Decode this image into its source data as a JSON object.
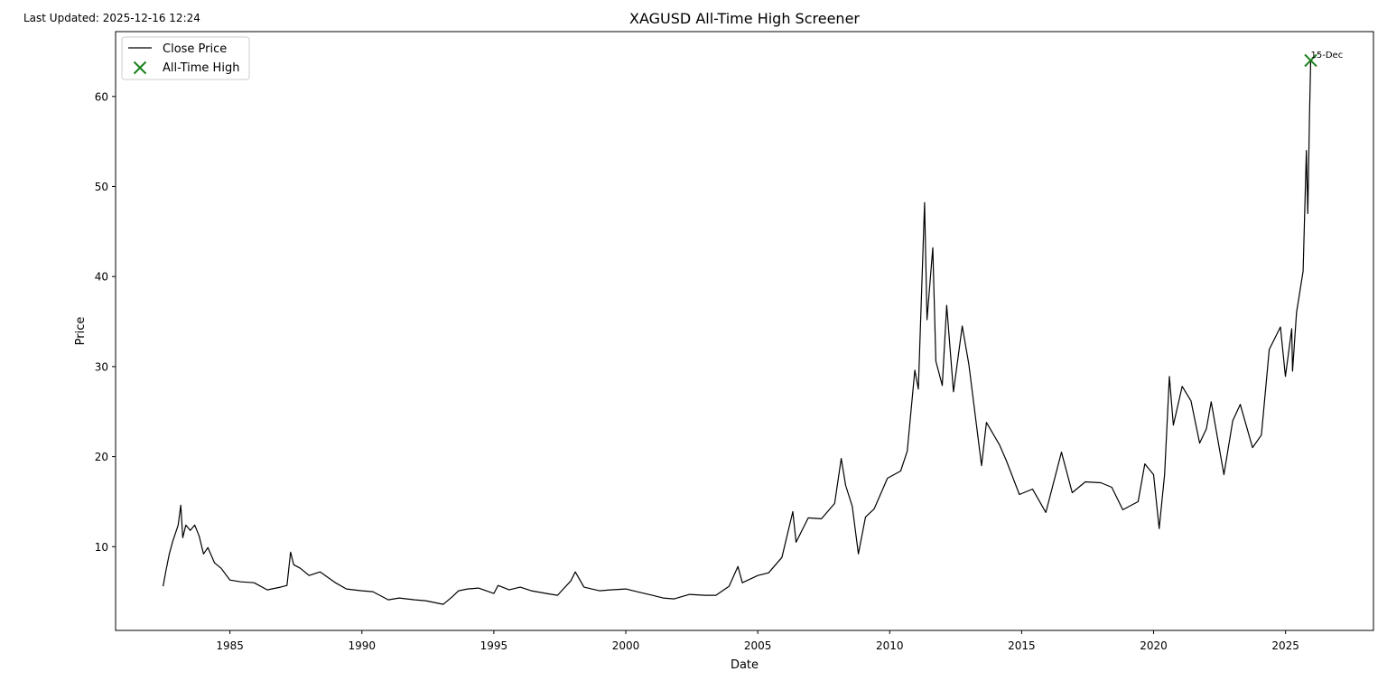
{
  "header": {
    "last_updated": "Last Updated: 2025-12-16 12:24"
  },
  "chart_data": {
    "type": "line",
    "title": "XAGUSD All-Time High Screener",
    "xlabel": "Date",
    "ylabel": "Price",
    "xlim": [
      "1980-09-01",
      "2028-05-01"
    ],
    "ylim": [
      0.7,
      67.2
    ],
    "x_ticks": [
      "1985",
      "1990",
      "1995",
      "2000",
      "2005",
      "2010",
      "2015",
      "2020",
      "2025"
    ],
    "y_ticks": [
      10,
      20,
      30,
      40,
      50,
      60
    ],
    "grid": false,
    "legend": {
      "position": "upper-left",
      "entries": [
        "Close Price",
        "All-Time High"
      ]
    },
    "colors": {
      "line": "#000000",
      "ath_marker": "#1a7f1a"
    },
    "series": [
      {
        "name": "Close Price",
        "points": [
          [
            "1982-06-20",
            5.6
          ],
          [
            "1982-08-01",
            7.4
          ],
          [
            "1982-09-15",
            9.2
          ],
          [
            "1982-11-01",
            10.6
          ],
          [
            "1983-01-15",
            12.4
          ],
          [
            "1983-02-20",
            14.6
          ],
          [
            "1983-03-20",
            11.0
          ],
          [
            "1983-05-01",
            12.4
          ],
          [
            "1983-07-01",
            11.8
          ],
          [
            "1983-09-01",
            12.4
          ],
          [
            "1983-11-01",
            11.2
          ],
          [
            "1984-01-01",
            9.2
          ],
          [
            "1984-03-01",
            9.9
          ],
          [
            "1984-06-01",
            8.2
          ],
          [
            "1984-09-01",
            7.6
          ],
          [
            "1985-01-01",
            6.3
          ],
          [
            "1985-06-01",
            6.1
          ],
          [
            "1985-12-01",
            6.0
          ],
          [
            "1986-06-01",
            5.2
          ],
          [
            "1986-12-01",
            5.5
          ],
          [
            "1987-03-01",
            5.7
          ],
          [
            "1987-04-20",
            9.4
          ],
          [
            "1987-06-01",
            8.0
          ],
          [
            "1987-09-01",
            7.6
          ],
          [
            "1988-01-01",
            6.8
          ],
          [
            "1988-06-01",
            7.2
          ],
          [
            "1989-01-01",
            6.0
          ],
          [
            "1989-06-01",
            5.3
          ],
          [
            "1990-01-01",
            5.1
          ],
          [
            "1990-06-01",
            5.0
          ],
          [
            "1991-01-01",
            4.1
          ],
          [
            "1991-06-01",
            4.3
          ],
          [
            "1992-01-01",
            4.1
          ],
          [
            "1992-06-01",
            4.0
          ],
          [
            "1993-02-01",
            3.6
          ],
          [
            "1993-06-01",
            4.4
          ],
          [
            "1993-09-01",
            5.1
          ],
          [
            "1994-01-01",
            5.3
          ],
          [
            "1994-06-01",
            5.4
          ],
          [
            "1995-01-01",
            4.8
          ],
          [
            "1995-03-01",
            5.7
          ],
          [
            "1995-08-01",
            5.2
          ],
          [
            "1996-01-01",
            5.5
          ],
          [
            "1996-06-01",
            5.1
          ],
          [
            "1997-01-01",
            4.8
          ],
          [
            "1997-06-01",
            4.6
          ],
          [
            "1997-12-01",
            6.2
          ],
          [
            "1998-02-01",
            7.2
          ],
          [
            "1998-06-01",
            5.5
          ],
          [
            "1999-01-01",
            5.1
          ],
          [
            "1999-06-01",
            5.2
          ],
          [
            "2000-01-01",
            5.3
          ],
          [
            "2000-06-01",
            5.0
          ],
          [
            "2001-01-01",
            4.6
          ],
          [
            "2001-06-01",
            4.3
          ],
          [
            "2001-11-01",
            4.2
          ],
          [
            "2002-06-01",
            4.7
          ],
          [
            "2003-01-01",
            4.6
          ],
          [
            "2003-06-01",
            4.6
          ],
          [
            "2003-12-01",
            5.6
          ],
          [
            "2004-04-01",
            7.8
          ],
          [
            "2004-06-01",
            6.0
          ],
          [
            "2005-01-01",
            6.8
          ],
          [
            "2005-06-01",
            7.1
          ],
          [
            "2005-12-01",
            8.8
          ],
          [
            "2006-05-01",
            13.9
          ],
          [
            "2006-06-15",
            10.5
          ],
          [
            "2006-12-01",
            13.2
          ],
          [
            "2007-06-01",
            13.1
          ],
          [
            "2007-12-01",
            14.8
          ],
          [
            "2008-03-01",
            19.8
          ],
          [
            "2008-05-01",
            16.8
          ],
          [
            "2008-08-01",
            14.5
          ],
          [
            "2008-10-25",
            9.2
          ],
          [
            "2009-02-01",
            13.3
          ],
          [
            "2009-06-01",
            14.2
          ],
          [
            "2009-12-01",
            17.6
          ],
          [
            "2010-06-01",
            18.4
          ],
          [
            "2010-09-01",
            20.6
          ],
          [
            "2010-12-15",
            29.6
          ],
          [
            "2011-02-01",
            27.5
          ],
          [
            "2011-04-28",
            48.2
          ],
          [
            "2011-06-01",
            35.2
          ],
          [
            "2011-08-20",
            43.2
          ],
          [
            "2011-10-01",
            30.6
          ],
          [
            "2011-12-29",
            27.9
          ],
          [
            "2012-02-28",
            36.8
          ],
          [
            "2012-06-01",
            27.2
          ],
          [
            "2012-10-01",
            34.5
          ],
          [
            "2013-01-01",
            30.2
          ],
          [
            "2013-06-25",
            19.0
          ],
          [
            "2013-09-01",
            23.8
          ],
          [
            "2014-03-01",
            21.3
          ],
          [
            "2014-06-01",
            19.6
          ],
          [
            "2014-12-01",
            15.8
          ],
          [
            "2015-06-01",
            16.4
          ],
          [
            "2015-12-01",
            13.8
          ],
          [
            "2016-07-05",
            20.5
          ],
          [
            "2016-12-01",
            16.0
          ],
          [
            "2017-06-01",
            17.2
          ],
          [
            "2018-01-01",
            17.1
          ],
          [
            "2018-06-01",
            16.6
          ],
          [
            "2018-11-01",
            14.1
          ],
          [
            "2019-06-01",
            15.0
          ],
          [
            "2019-09-01",
            19.2
          ],
          [
            "2020-01-01",
            18.0
          ],
          [
            "2020-03-18",
            12.0
          ],
          [
            "2020-06-01",
            18.0
          ],
          [
            "2020-08-07",
            28.9
          ],
          [
            "2020-10-01",
            23.5
          ],
          [
            "2021-02-01",
            27.8
          ],
          [
            "2021-06-01",
            26.2
          ],
          [
            "2021-09-29",
            21.5
          ],
          [
            "2022-01-01",
            23.1
          ],
          [
            "2022-03-08",
            26.1
          ],
          [
            "2022-09-01",
            18.0
          ],
          [
            "2023-01-01",
            24.0
          ],
          [
            "2023-04-15",
            25.8
          ],
          [
            "2023-10-01",
            21.0
          ],
          [
            "2024-02-01",
            22.4
          ],
          [
            "2024-05-20",
            31.9
          ],
          [
            "2024-10-22",
            34.4
          ],
          [
            "2024-12-30",
            28.9
          ],
          [
            "2025-03-28",
            34.2
          ],
          [
            "2025-04-08",
            29.5
          ],
          [
            "2025-06-01",
            36.0
          ],
          [
            "2025-09-01",
            40.6
          ],
          [
            "2025-10-16",
            54.0
          ],
          [
            "2025-11-05",
            47.0
          ],
          [
            "2025-11-28",
            58.0
          ],
          [
            "2025-12-15",
            64.0
          ]
        ]
      }
    ],
    "annotations": [
      {
        "label": "All-Time High",
        "text": "15-Dec",
        "x": "2025-12-15",
        "y": 64.0
      }
    ]
  }
}
